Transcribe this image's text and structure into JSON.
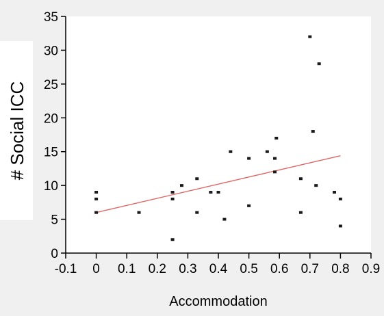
{
  "chart_data": {
    "type": "scatter",
    "title": "",
    "xlabel": "Accommodation",
    "ylabel": "# Social ICC",
    "xlim": [
      -0.1,
      0.9
    ],
    "ylim": [
      0,
      35
    ],
    "x_ticks": [
      "-0.1",
      "0",
      "0.1",
      "0.2",
      "0.3",
      "0.4",
      "0.5",
      "0.6",
      "0.7",
      "0.8",
      "0.9"
    ],
    "y_ticks": [
      "0",
      "5",
      "10",
      "15",
      "20",
      "25",
      "30",
      "35"
    ],
    "grid": false,
    "colors": {
      "points": "#1a1a1a",
      "fit_line": "#e06666",
      "plot_bg": "#ffffff",
      "page_bg": "#f0f0f0"
    },
    "series": [
      {
        "points": [
          [
            0.0,
            9
          ],
          [
            0.0,
            8
          ],
          [
            0.0,
            6
          ],
          [
            0.14,
            6
          ],
          [
            0.25,
            9
          ],
          [
            0.25,
            8
          ],
          [
            0.25,
            2
          ],
          [
            0.28,
            10
          ],
          [
            0.33,
            11
          ],
          [
            0.33,
            6
          ],
          [
            0.375,
            9
          ],
          [
            0.4,
            9
          ],
          [
            0.42,
            5
          ],
          [
            0.44,
            15
          ],
          [
            0.5,
            14
          ],
          [
            0.5,
            7
          ],
          [
            0.56,
            15
          ],
          [
            0.585,
            14
          ],
          [
            0.585,
            12
          ],
          [
            0.59,
            17
          ],
          [
            0.67,
            11
          ],
          [
            0.67,
            6
          ],
          [
            0.7,
            32
          ],
          [
            0.71,
            18
          ],
          [
            0.72,
            10
          ],
          [
            0.73,
            28
          ],
          [
            0.78,
            9
          ],
          [
            0.8,
            8
          ],
          [
            0.8,
            4
          ]
        ]
      }
    ],
    "fit_line": {
      "x": [
        0.0,
        0.8
      ],
      "y": [
        6.0,
        14.4
      ]
    }
  }
}
